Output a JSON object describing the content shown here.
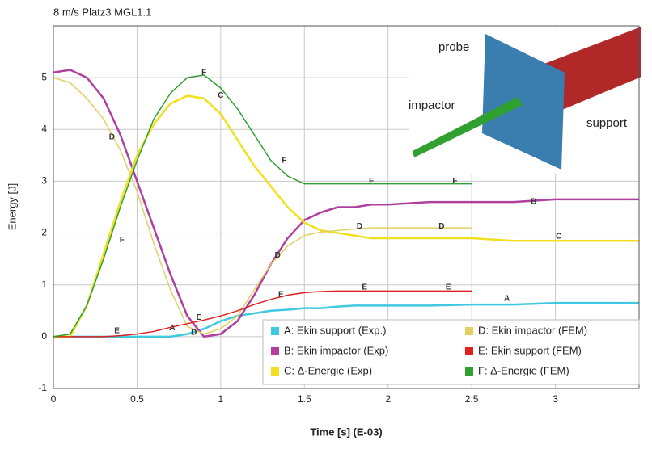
{
  "chart_data": {
    "type": "line",
    "title": "8 m/s Platz3 MGL1.1",
    "x_label": "Time [s] (E-03)",
    "y_label": "Energy [J]",
    "xlim": [
      0,
      3.5
    ],
    "xticks": [
      0,
      0.5,
      1,
      1.5,
      2,
      2.5,
      3
    ],
    "ylim": [
      -1,
      6
    ],
    "yticks": [
      -1,
      0,
      1,
      2,
      3,
      4,
      5
    ],
    "grid": true,
    "x": [
      0,
      0.1,
      0.2,
      0.3,
      0.4,
      0.5,
      0.6,
      0.7,
      0.8,
      0.9,
      1.0,
      1.1,
      1.2,
      1.3,
      1.4,
      1.5,
      1.6,
      1.7,
      1.8,
      1.9,
      2.0,
      2.25,
      2.5,
      2.75,
      3.0,
      3.25,
      3.5
    ],
    "series": [
      {
        "name": "A: Ekin support (Exp.)",
        "color": "#40c8e0",
        "values": [
          0,
          0,
          0,
          0,
          0,
          0,
          0,
          0,
          0.05,
          0.15,
          0.3,
          0.4,
          0.45,
          0.5,
          0.52,
          0.55,
          0.55,
          0.58,
          0.6,
          0.6,
          0.6,
          0.6,
          0.62,
          0.62,
          0.65,
          0.65,
          0.65
        ]
      },
      {
        "name": "B: Ekin impactor (Exp)",
        "color": "#b040a0",
        "values": [
          5.1,
          5.15,
          5.0,
          4.6,
          3.9,
          3.0,
          2.1,
          1.2,
          0.4,
          0.0,
          0.05,
          0.3,
          0.8,
          1.4,
          1.9,
          2.25,
          2.4,
          2.5,
          2.5,
          2.55,
          2.55,
          2.6,
          2.6,
          2.6,
          2.65,
          2.65,
          2.65
        ]
      },
      {
        "name": "C: Δ-Energie (Exp)",
        "color": "#f0e020",
        "values": [
          0,
          0,
          0.6,
          1.6,
          2.6,
          3.5,
          4.1,
          4.5,
          4.65,
          4.6,
          4.3,
          3.8,
          3.3,
          2.9,
          2.5,
          2.2,
          2.05,
          2.0,
          1.95,
          1.9,
          1.9,
          1.9,
          1.9,
          1.85,
          1.85,
          1.85,
          1.85
        ]
      },
      {
        "name": "D: Ekin impactor (FEM)",
        "color": "#e0d060",
        "values": [
          5.0,
          4.9,
          4.6,
          4.2,
          3.6,
          2.8,
          1.8,
          0.9,
          0.2,
          0.05,
          0.15,
          0.4,
          0.9,
          1.4,
          1.75,
          1.95,
          2.02,
          2.05,
          2.08,
          2.1,
          2.1,
          2.1,
          2.1,
          null,
          null,
          null,
          null
        ]
      },
      {
        "name": "E: Ekin support (FEM)",
        "color": "#e02020",
        "values": [
          0,
          0,
          0,
          0,
          0.02,
          0.05,
          0.1,
          0.18,
          0.25,
          0.32,
          0.4,
          0.5,
          0.62,
          0.72,
          0.8,
          0.85,
          0.87,
          0.88,
          0.88,
          0.88,
          0.88,
          0.88,
          0.88,
          null,
          null,
          null,
          null
        ]
      },
      {
        "name": "F:  Δ-Energie (FEM)",
        "color": "#30a030",
        "values": [
          0,
          0.05,
          0.6,
          1.5,
          2.5,
          3.4,
          4.2,
          4.7,
          5.0,
          5.05,
          4.8,
          4.4,
          3.9,
          3.4,
          3.1,
          2.95,
          2.95,
          2.95,
          2.95,
          2.95,
          2.95,
          2.95,
          2.95,
          null,
          null,
          null,
          null
        ]
      }
    ],
    "annotations": [
      {
        "text": "F",
        "x": 0.9,
        "y": 5.1
      },
      {
        "text": "C",
        "x": 1.0,
        "y": 4.65
      },
      {
        "text": "D",
        "x": 0.35,
        "y": 3.85
      },
      {
        "text": "F",
        "x": 1.38,
        "y": 3.4
      },
      {
        "text": "F",
        "x": 1.9,
        "y": 3.0
      },
      {
        "text": "F",
        "x": 2.4,
        "y": 3.0
      },
      {
        "text": "B",
        "x": 2.87,
        "y": 2.6
      },
      {
        "text": "D",
        "x": 1.83,
        "y": 2.13
      },
      {
        "text": "D",
        "x": 2.32,
        "y": 2.13
      },
      {
        "text": "C",
        "x": 3.02,
        "y": 1.93
      },
      {
        "text": "F",
        "x": 0.41,
        "y": 1.86
      },
      {
        "text": "D",
        "x": 1.34,
        "y": 1.57
      },
      {
        "text": "E",
        "x": 1.36,
        "y": 0.81
      },
      {
        "text": "E",
        "x": 1.86,
        "y": 0.95
      },
      {
        "text": "E",
        "x": 2.36,
        "y": 0.95
      },
      {
        "text": "A",
        "x": 2.71,
        "y": 0.73
      },
      {
        "text": "E",
        "x": 0.38,
        "y": 0.11
      },
      {
        "text": "A",
        "x": 0.71,
        "y": 0.16
      },
      {
        "text": "E",
        "x": 0.87,
        "y": 0.37
      },
      {
        "text": "D",
        "x": 0.84,
        "y": 0.08
      }
    ],
    "inset_labels": {
      "probe": "probe",
      "impactor": "impactor",
      "support": "support"
    }
  }
}
